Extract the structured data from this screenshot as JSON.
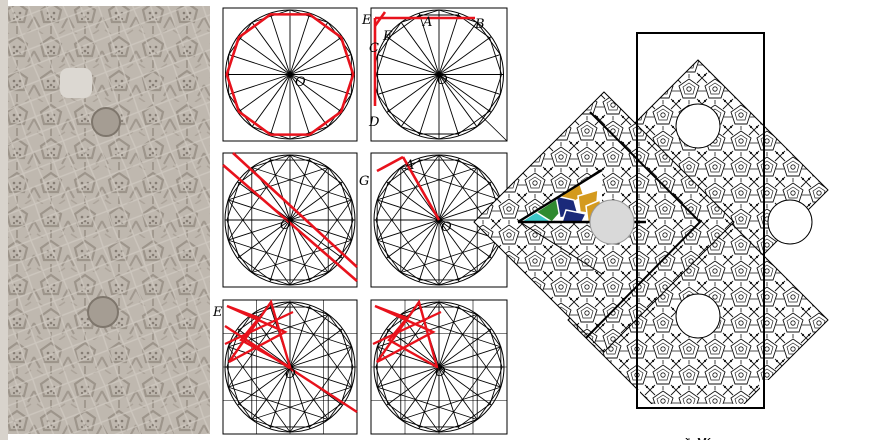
{
  "colors": {
    "construction": "#000000",
    "highlight": "#e8121c",
    "stone": "#b9b2a9",
    "teal": "#3cc8c8",
    "green": "#2f8a2f",
    "navy": "#1b2a7a",
    "gold": "#d49a1e",
    "medallion": "#d9d9d9"
  },
  "photo": {
    "icon": "carved-stone-panel-photo"
  },
  "panels": [
    {
      "id": "p1",
      "labels": [
        {
          "text": "O"
        }
      ]
    },
    {
      "id": "p2",
      "labels": [
        {
          "text": "E"
        },
        {
          "text": "A"
        },
        {
          "text": "B"
        },
        {
          "text": "F"
        },
        {
          "text": "C"
        },
        {
          "text": "O"
        },
        {
          "text": "D"
        }
      ]
    },
    {
      "id": "p3",
      "labels": [
        {
          "text": "O"
        }
      ]
    },
    {
      "id": "p4",
      "labels": [
        {
          "text": "G"
        },
        {
          "text": "A"
        },
        {
          "text": "O"
        }
      ]
    },
    {
      "id": "p5",
      "labels": [
        {
          "text": "E"
        },
        {
          "text": "O"
        }
      ]
    },
    {
      "id": "p6",
      "labels": [
        {
          "text": "O"
        }
      ]
    }
  ],
  "tiling": {
    "icon": "tessellation-diagram"
  }
}
